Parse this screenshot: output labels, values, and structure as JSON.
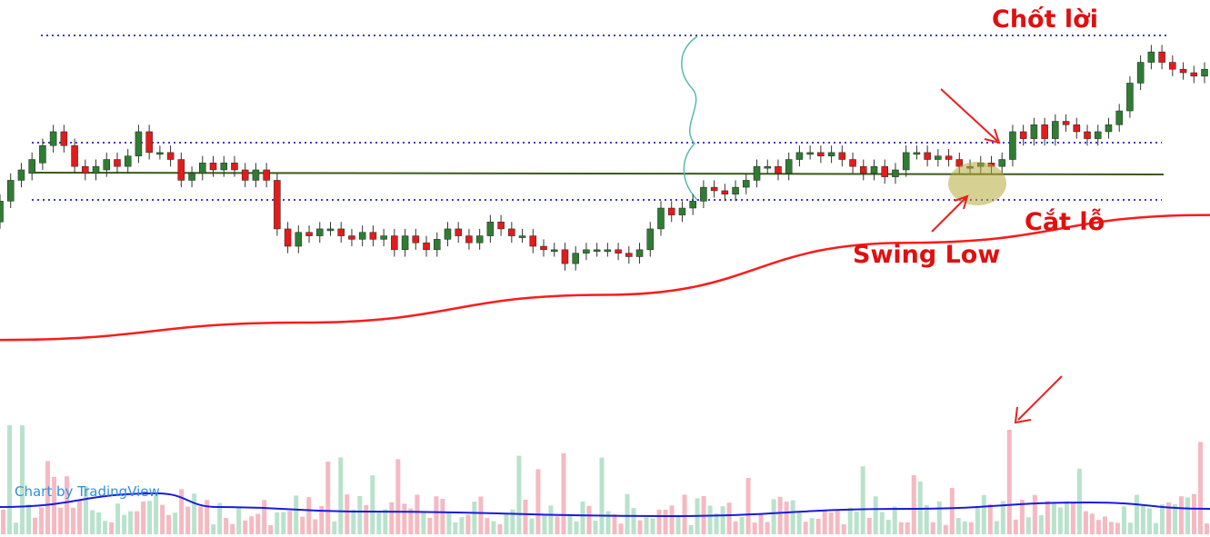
{
  "annotations": {
    "take_profit": "Chốt lời",
    "stop_loss": "Cắt lỗ",
    "swing_low": "Swing Low"
  },
  "watermark": "Chart by TradingView",
  "colors": {
    "up": "#2e7d32",
    "down": "#e31b1b",
    "ma": "#ff1a1a",
    "level": "#3b3bd6",
    "resistance": "#3a5a1a",
    "brace": "#59b8b0",
    "highlight": "#b5a93a",
    "arrow": "#e82020",
    "volume_up": "#b9e2cc",
    "volume_down": "#f5b9c1",
    "volume_ma": "#1a1ae0"
  },
  "chart_data": {
    "type": "candlestick",
    "title": "",
    "xlabel": "",
    "ylabel": "",
    "grid": false,
    "price_range": [
      0,
      100
    ],
    "levels": {
      "take_profit": 94,
      "upper_dotted": 72,
      "resistance": 66,
      "stop_loss": 60
    },
    "candles": [
      [
        46,
        52
      ],
      [
        52,
        58
      ],
      [
        58,
        61
      ],
      [
        60,
        64
      ],
      [
        63,
        68
      ],
      [
        68,
        72
      ],
      [
        72,
        68
      ],
      [
        68,
        62
      ],
      [
        62,
        60
      ],
      [
        60,
        62
      ],
      [
        61,
        64
      ],
      [
        64,
        62
      ],
      [
        62,
        65
      ],
      [
        65,
        72
      ],
      [
        72,
        66
      ],
      [
        66,
        66
      ],
      [
        66,
        64
      ],
      [
        64,
        58
      ],
      [
        58,
        60
      ],
      [
        60,
        63
      ],
      [
        63,
        61
      ],
      [
        61,
        63
      ],
      [
        63,
        61
      ],
      [
        61,
        58
      ],
      [
        58,
        61
      ],
      [
        61,
        58
      ],
      [
        58,
        44
      ],
      [
        44,
        39
      ],
      [
        39,
        43
      ],
      [
        43,
        42
      ],
      [
        42,
        44
      ],
      [
        44,
        44
      ],
      [
        44,
        42
      ],
      [
        42,
        41
      ],
      [
        41,
        43
      ],
      [
        43,
        41
      ],
      [
        41,
        42
      ],
      [
        42,
        38
      ],
      [
        38,
        42
      ],
      [
        42,
        40
      ],
      [
        40,
        38
      ],
      [
        38,
        41
      ],
      [
        41,
        44
      ],
      [
        44,
        42
      ],
      [
        42,
        40
      ],
      [
        40,
        42
      ],
      [
        42,
        46
      ],
      [
        46,
        44
      ],
      [
        44,
        42
      ],
      [
        42,
        42
      ],
      [
        42,
        39
      ],
      [
        39,
        38
      ],
      [
        38,
        38
      ],
      [
        38,
        34
      ],
      [
        34,
        37
      ],
      [
        37,
        38
      ],
      [
        38,
        38
      ],
      [
        38,
        38
      ],
      [
        38,
        37
      ],
      [
        37,
        36
      ],
      [
        36,
        38
      ],
      [
        38,
        44
      ],
      [
        44,
        50
      ],
      [
        50,
        48
      ],
      [
        48,
        50
      ],
      [
        50,
        52
      ],
      [
        52,
        56
      ],
      [
        56,
        55
      ],
      [
        55,
        54
      ],
      [
        54,
        56
      ],
      [
        56,
        58
      ],
      [
        58,
        62
      ],
      [
        62,
        62
      ],
      [
        62,
        60
      ],
      [
        60,
        64
      ],
      [
        64,
        66
      ],
      [
        66,
        66
      ],
      [
        66,
        65
      ],
      [
        65,
        66
      ],
      [
        66,
        64
      ],
      [
        64,
        62
      ],
      [
        62,
        60
      ],
      [
        60,
        62
      ],
      [
        62,
        59
      ],
      [
        59,
        61
      ],
      [
        61,
        66
      ],
      [
        66,
        66
      ],
      [
        66,
        64
      ],
      [
        64,
        65
      ],
      [
        65,
        64
      ],
      [
        64,
        62
      ],
      [
        62,
        62
      ],
      [
        62,
        63
      ],
      [
        63,
        62
      ],
      [
        62,
        64
      ],
      [
        64,
        72
      ],
      [
        72,
        70
      ],
      [
        70,
        74
      ],
      [
        74,
        70
      ],
      [
        70,
        75
      ],
      [
        75,
        74
      ],
      [
        74,
        72
      ],
      [
        72,
        70
      ],
      [
        70,
        72
      ],
      [
        72,
        74
      ],
      [
        74,
        78
      ],
      [
        78,
        86
      ],
      [
        86,
        92
      ],
      [
        92,
        95
      ],
      [
        95,
        92
      ],
      [
        92,
        90
      ],
      [
        90,
        89
      ],
      [
        89,
        88
      ],
      [
        88,
        90
      ]
    ],
    "moving_average": [
      [
        0,
        12
      ],
      [
        0.25,
        17
      ],
      [
        0.5,
        25
      ],
      [
        0.75,
        40
      ],
      [
        1,
        48
      ]
    ],
    "volume_ma": [
      [
        0,
        30
      ],
      [
        0.13,
        45
      ],
      [
        0.18,
        30
      ],
      [
        0.3,
        25
      ],
      [
        0.55,
        20
      ],
      [
        0.75,
        28
      ],
      [
        0.9,
        35
      ],
      [
        1,
        28
      ]
    ]
  }
}
